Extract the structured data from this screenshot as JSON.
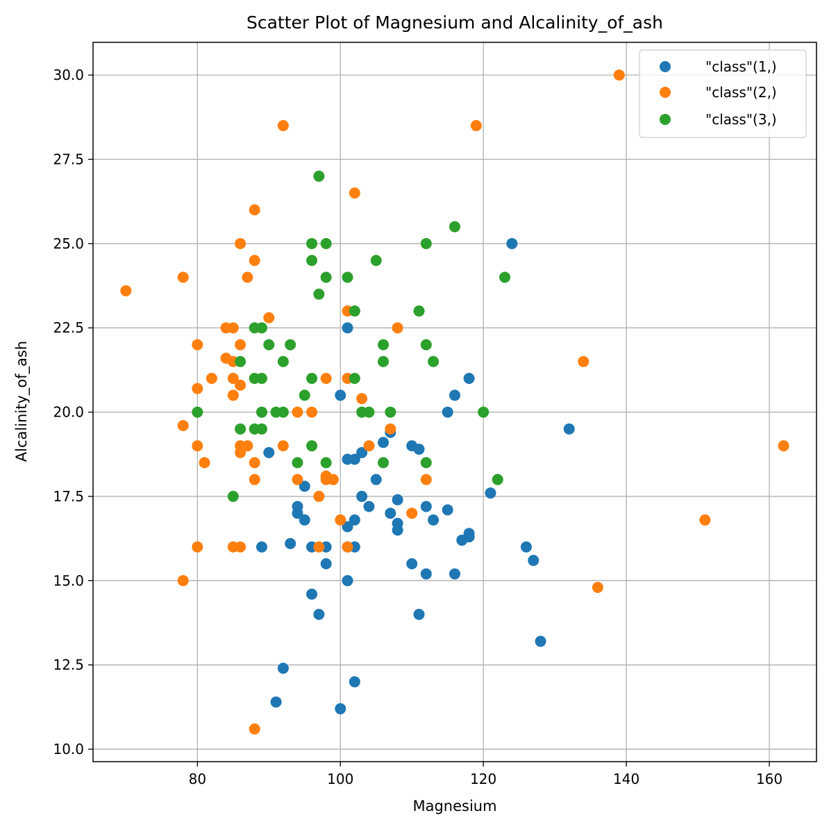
{
  "chart_data": {
    "type": "scatter",
    "title": "Scatter Plot of Magnesium and Alcalinity_of_ash",
    "xlabel": "Magnesium",
    "ylabel": "Alcalinity_of_ash",
    "xlim": [
      65.4,
      166.6
    ],
    "ylim": [
      9.63,
      30.97
    ],
    "xticks": [
      80,
      100,
      120,
      140,
      160
    ],
    "xtick_labels": [
      "80",
      "100",
      "120",
      "140",
      "160"
    ],
    "yticks": [
      10.0,
      12.5,
      15.0,
      17.5,
      20.0,
      22.5,
      25.0,
      27.5,
      30.0
    ],
    "ytick_labels": [
      "10.0",
      "12.5",
      "15.0",
      "17.5",
      "20.0",
      "22.5",
      "25.0",
      "27.5",
      "30.0"
    ],
    "grid": true,
    "legend_position": "top-right",
    "series": [
      {
        "name": "\"class\"(1,)",
        "color": "#1f77b4",
        "points": [
          [
            124,
            25.0
          ],
          [
            101,
            22.5
          ],
          [
            118,
            21.0
          ],
          [
            100,
            20.5
          ],
          [
            116,
            20.5
          ],
          [
            115,
            20.0
          ],
          [
            132,
            19.5
          ],
          [
            107,
            19.4
          ],
          [
            106,
            19.1
          ],
          [
            110,
            19.0
          ],
          [
            111,
            18.9
          ],
          [
            90,
            18.8
          ],
          [
            103,
            18.8
          ],
          [
            101,
            18.6
          ],
          [
            102,
            18.6
          ],
          [
            105,
            18.0
          ],
          [
            95,
            17.8
          ],
          [
            121,
            17.6
          ],
          [
            103,
            17.5
          ],
          [
            108,
            17.4
          ],
          [
            94,
            17.2
          ],
          [
            104,
            17.2
          ],
          [
            112,
            17.2
          ],
          [
            115,
            17.1
          ],
          [
            94,
            17.0
          ],
          [
            107,
            17.0
          ],
          [
            95,
            16.8
          ],
          [
            102,
            16.8
          ],
          [
            113,
            16.8
          ],
          [
            108,
            16.7
          ],
          [
            101,
            16.6
          ],
          [
            108,
            16.5
          ],
          [
            118,
            16.4
          ],
          [
            118,
            16.3
          ],
          [
            117,
            16.2
          ],
          [
            93,
            16.1
          ],
          [
            89,
            16.0
          ],
          [
            96,
            16.0
          ],
          [
            98,
            16.0
          ],
          [
            101,
            16.0
          ],
          [
            102,
            16.0
          ],
          [
            126,
            16.0
          ],
          [
            127,
            15.6
          ],
          [
            98,
            15.5
          ],
          [
            110,
            15.5
          ],
          [
            112,
            15.2
          ],
          [
            116,
            15.2
          ],
          [
            101,
            15.0
          ],
          [
            96,
            14.6
          ],
          [
            97,
            14.0
          ],
          [
            111,
            14.0
          ],
          [
            128,
            13.2
          ],
          [
            92,
            12.4
          ],
          [
            102,
            12.0
          ],
          [
            91,
            11.4
          ],
          [
            100,
            11.2
          ]
        ]
      },
      {
        "name": "\"class\"(2,)",
        "color": "#ff7f0e",
        "points": [
          [
            139,
            30.0
          ],
          [
            92,
            28.5
          ],
          [
            119,
            28.5
          ],
          [
            102,
            26.5
          ],
          [
            88,
            26.0
          ],
          [
            86,
            25.0
          ],
          [
            88,
            24.5
          ],
          [
            78,
            24.0
          ],
          [
            87,
            24.0
          ],
          [
            70,
            23.6
          ],
          [
            101,
            23.0
          ],
          [
            90,
            22.8
          ],
          [
            84,
            22.5
          ],
          [
            85,
            22.5
          ],
          [
            108,
            22.5
          ],
          [
            80,
            22.0
          ],
          [
            86,
            22.0
          ],
          [
            84,
            21.6
          ],
          [
            85,
            21.5
          ],
          [
            134,
            21.5
          ],
          [
            82,
            21.0
          ],
          [
            85,
            21.0
          ],
          [
            98,
            21.0
          ],
          [
            101,
            21.0
          ],
          [
            86,
            20.8
          ],
          [
            80,
            20.7
          ],
          [
            85,
            20.5
          ],
          [
            103,
            20.4
          ],
          [
            94,
            20.0
          ],
          [
            96,
            20.0
          ],
          [
            78,
            19.6
          ],
          [
            107,
            19.5
          ],
          [
            80,
            19.0
          ],
          [
            86,
            19.0
          ],
          [
            87,
            19.0
          ],
          [
            92,
            19.0
          ],
          [
            104,
            19.0
          ],
          [
            162,
            19.0
          ],
          [
            86,
            18.8
          ],
          [
            81,
            18.5
          ],
          [
            88,
            18.5
          ],
          [
            98,
            18.1
          ],
          [
            88,
            18.0
          ],
          [
            94,
            18.0
          ],
          [
            98,
            18.0
          ],
          [
            99,
            18.0
          ],
          [
            112,
            18.0
          ],
          [
            97,
            17.5
          ],
          [
            110,
            17.0
          ],
          [
            100,
            16.8
          ],
          [
            151,
            16.8
          ],
          [
            80,
            16.0
          ],
          [
            85,
            16.0
          ],
          [
            86,
            16.0
          ],
          [
            97,
            16.0
          ],
          [
            101,
            16.0
          ],
          [
            78,
            15.0
          ],
          [
            136,
            14.8
          ],
          [
            88,
            10.6
          ]
        ]
      },
      {
        "name": "\"class\"(3,)",
        "color": "#2ca02c",
        "points": [
          [
            97,
            27.0
          ],
          [
            116,
            25.5
          ],
          [
            96,
            25.0
          ],
          [
            98,
            25.0
          ],
          [
            112,
            25.0
          ],
          [
            96,
            24.5
          ],
          [
            105,
            24.5
          ],
          [
            98,
            24.0
          ],
          [
            101,
            24.0
          ],
          [
            123,
            24.0
          ],
          [
            97,
            23.5
          ],
          [
            102,
            23.0
          ],
          [
            111,
            23.0
          ],
          [
            88,
            22.5
          ],
          [
            89,
            22.5
          ],
          [
            90,
            22.0
          ],
          [
            93,
            22.0
          ],
          [
            106,
            22.0
          ],
          [
            112,
            22.0
          ],
          [
            86,
            21.5
          ],
          [
            92,
            21.5
          ],
          [
            106,
            21.5
          ],
          [
            113,
            21.5
          ],
          [
            88,
            21.0
          ],
          [
            89,
            21.0
          ],
          [
            96,
            21.0
          ],
          [
            102,
            21.0
          ],
          [
            95,
            20.5
          ],
          [
            80,
            20.0
          ],
          [
            89,
            20.0
          ],
          [
            91,
            20.0
          ],
          [
            92,
            20.0
          ],
          [
            103,
            20.0
          ],
          [
            104,
            20.0
          ],
          [
            107,
            20.0
          ],
          [
            120,
            20.0
          ],
          [
            86,
            19.5
          ],
          [
            88,
            19.5
          ],
          [
            89,
            19.5
          ],
          [
            96,
            19.0
          ],
          [
            94,
            18.5
          ],
          [
            98,
            18.5
          ],
          [
            106,
            18.5
          ],
          [
            112,
            18.5
          ],
          [
            122,
            18.0
          ],
          [
            85,
            17.5
          ]
        ]
      }
    ]
  }
}
